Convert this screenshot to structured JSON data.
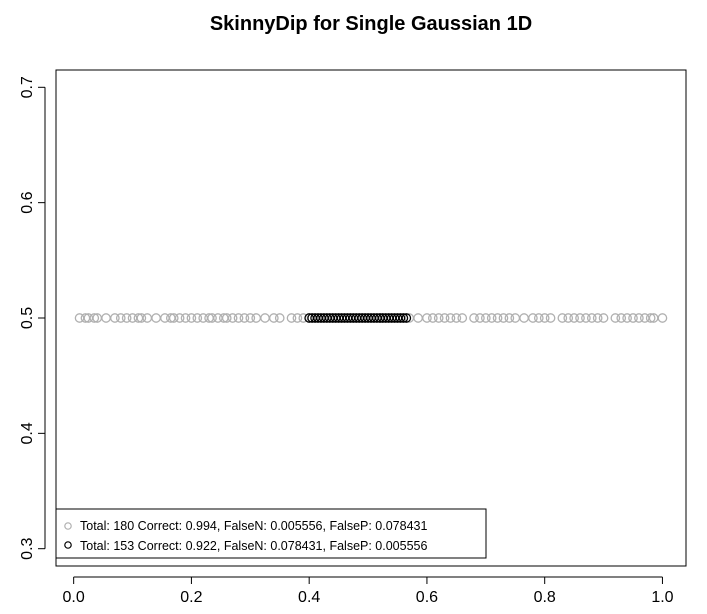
{
  "chart_data": {
    "type": "scatter",
    "title": "SkinnyDip for Single Gaussian 1D",
    "xlabel": "",
    "ylabel": "",
    "xlim": [
      -0.03,
      1.04
    ],
    "ylim": [
      0.285,
      0.715
    ],
    "x_ticks": [
      {
        "value": 0.0,
        "label": "0.0"
      },
      {
        "value": 0.2,
        "label": "0.2"
      },
      {
        "value": 0.4,
        "label": "0.4"
      },
      {
        "value": 0.6,
        "label": "0.6"
      },
      {
        "value": 0.8,
        "label": "0.8"
      },
      {
        "value": 1.0,
        "label": "1.0"
      }
    ],
    "y_ticks": [
      {
        "value": 0.3,
        "label": "0.3"
      },
      {
        "value": 0.4,
        "label": "0.4"
      },
      {
        "value": 0.5,
        "label": "0.5"
      },
      {
        "value": 0.6,
        "label": "0.6"
      },
      {
        "value": 0.7,
        "label": "0.7"
      }
    ],
    "grid": false,
    "legend_position": "bottom-left",
    "series": [
      {
        "name": "Total: 180 Correct: 0.994, FalseN: 0.005556, FalseP: 0.078431",
        "color": "#b0b0b0",
        "marker": "open-circle",
        "y": 0.5,
        "x": [
          0.01,
          0.02,
          0.025,
          0.035,
          0.04,
          0.055,
          0.07,
          0.08,
          0.09,
          0.1,
          0.11,
          0.115,
          0.125,
          0.14,
          0.155,
          0.165,
          0.17,
          0.18,
          0.19,
          0.2,
          0.21,
          0.22,
          0.23,
          0.235,
          0.245,
          0.255,
          0.26,
          0.27,
          0.28,
          0.29,
          0.3,
          0.31,
          0.325,
          0.34,
          0.35,
          0.37,
          0.38,
          0.39,
          0.57,
          0.585,
          0.6,
          0.61,
          0.62,
          0.63,
          0.64,
          0.65,
          0.66,
          0.68,
          0.69,
          0.7,
          0.71,
          0.72,
          0.73,
          0.74,
          0.75,
          0.765,
          0.78,
          0.79,
          0.8,
          0.81,
          0.83,
          0.84,
          0.85,
          0.86,
          0.87,
          0.88,
          0.89,
          0.9,
          0.92,
          0.93,
          0.94,
          0.95,
          0.96,
          0.97,
          0.98,
          0.985,
          1.0
        ]
      },
      {
        "name": "Total: 153 Correct: 0.922, FalseN: 0.078431, FalseP: 0.005556",
        "color": "#000000",
        "marker": "open-circle",
        "y": 0.5,
        "x": [
          0.4,
          0.405,
          0.41,
          0.415,
          0.42,
          0.425,
          0.43,
          0.435,
          0.44,
          0.445,
          0.45,
          0.455,
          0.46,
          0.465,
          0.47,
          0.475,
          0.48,
          0.485,
          0.49,
          0.495,
          0.5,
          0.505,
          0.51,
          0.515,
          0.52,
          0.525,
          0.53,
          0.535,
          0.54,
          0.545,
          0.55,
          0.555,
          0.56,
          0.565
        ]
      }
    ]
  }
}
